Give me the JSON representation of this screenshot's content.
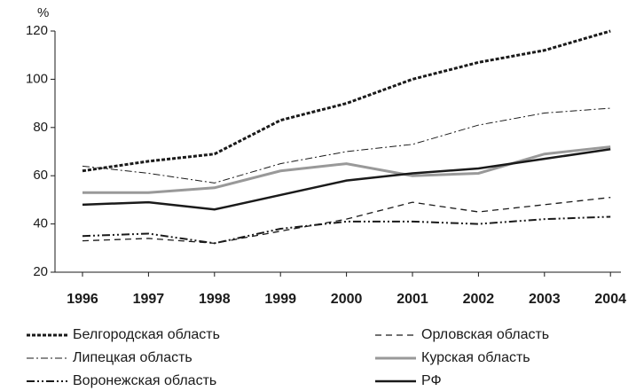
{
  "chart_data": {
    "type": "line",
    "ylabel": "%",
    "categories": [
      "1996",
      "1997",
      "1998",
      "1999",
      "2000",
      "2001",
      "2002",
      "2003",
      "2004"
    ],
    "ylim": [
      20,
      120
    ],
    "yticks": [
      20,
      40,
      60,
      80,
      100,
      120
    ],
    "series": [
      {
        "name": "Белгородская область",
        "color": "#1a1a1a",
        "dash": "dotted",
        "values": [
          62,
          66,
          69,
          83,
          90,
          100,
          107,
          112,
          120
        ]
      },
      {
        "name": "Орловская область",
        "color": "#1a1a1a",
        "dash": "dashed",
        "values": [
          33,
          34,
          32,
          37,
          42,
          49,
          45,
          48,
          51
        ]
      },
      {
        "name": "Липецкая область",
        "color": "#1a1a1a",
        "dash": "dash-dot",
        "values": [
          64,
          61,
          57,
          65,
          70,
          73,
          81,
          86,
          88
        ]
      },
      {
        "name": "Курская область",
        "color": "#999999",
        "dash": "solid-thick",
        "values": [
          53,
          53,
          55,
          62,
          65,
          60,
          61,
          69,
          72
        ]
      },
      {
        "name": "Воронежская область",
        "color": "#1a1a1a",
        "dash": "dash-dot-dot",
        "values": [
          35,
          36,
          32,
          38,
          41,
          41,
          40,
          42,
          43
        ]
      },
      {
        "name": "РФ",
        "color": "#1a1a1a",
        "dash": "solid",
        "values": [
          48,
          49,
          46,
          52,
          58,
          61,
          63,
          67,
          71
        ]
      }
    ]
  }
}
